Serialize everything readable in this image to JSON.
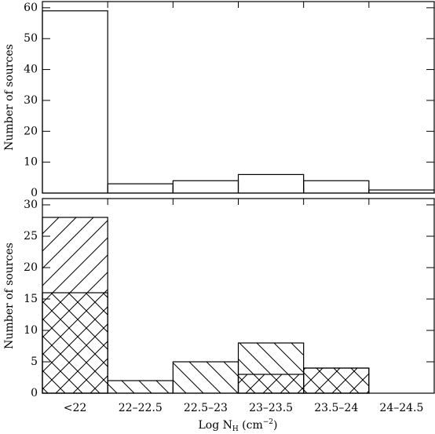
{
  "chart_data": {
    "type": "bar",
    "categories": [
      "<22",
      "22–22.5",
      "22.5–23",
      "23–23.5",
      "23.5–24",
      "24–24.5"
    ],
    "xlabel": {
      "main": "Log N",
      "sub": "H",
      "open": " (cm",
      "sup": "−2",
      "close": ")"
    },
    "panels": [
      {
        "ylabel": "Number of sources",
        "ylim": [
          0,
          62
        ],
        "yticks": [
          0,
          10,
          20,
          30,
          40,
          50,
          60
        ],
        "series": [
          {
            "color": "#000000",
            "hatch": "none",
            "values": [
              59,
              3,
              4,
              6,
              4,
              1
            ]
          }
        ]
      },
      {
        "ylabel": "Number of sources",
        "ylim": [
          0,
          31
        ],
        "yticks": [
          0,
          5,
          10,
          15,
          20,
          25,
          30
        ],
        "series": [
          {
            "color": "#000000",
            "hatch": "/",
            "values": [
              28,
              0,
              0,
              3,
              4,
              0
            ]
          },
          {
            "color": "#000000",
            "hatch": "\\",
            "values": [
              16,
              2,
              5,
              8,
              4,
              0
            ]
          }
        ]
      }
    ]
  }
}
